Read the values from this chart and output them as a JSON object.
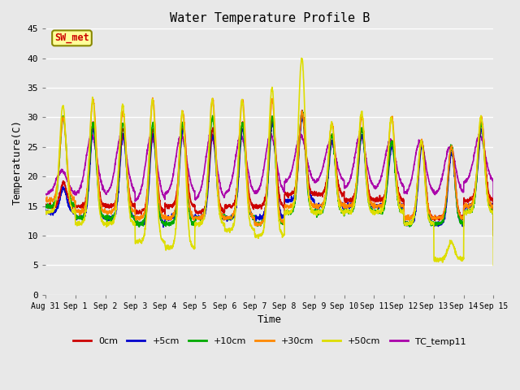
{
  "title": "Water Temperature Profile B",
  "xlabel": "Time",
  "ylabel": "Temperature(C)",
  "ylim": [
    0,
    45
  ],
  "yticks": [
    0,
    5,
    10,
    15,
    20,
    25,
    30,
    35,
    40,
    45
  ],
  "date_labels": [
    "Aug 31",
    "Sep 1",
    "Sep 2",
    "Sep 3",
    "Sep 4",
    "Sep 5",
    "Sep 6",
    "Sep 7",
    "Sep 8",
    "Sep 9",
    "Sep 10",
    "Sep 11",
    "Sep 12",
    "Sep 13",
    "Sep 14",
    "Sep 15"
  ],
  "series_colors": {
    "0cm": "#cc0000",
    "+5cm": "#0000cc",
    "+10cm": "#00aa00",
    "+30cm": "#ff8800",
    "+50cm": "#dddd00",
    "TC_temp11": "#aa00aa"
  },
  "annotation_text": "SW_met",
  "annotation_color": "#cc0000",
  "annotation_bg": "#ffff99",
  "annotation_border": "#888800",
  "bg_color": "#e8e8e8",
  "legend_colors": [
    "#cc0000",
    "#0000cc",
    "#00aa00",
    "#ff8800",
    "#dddd00",
    "#aa00aa"
  ],
  "legend_labels": [
    "0cm",
    "+5cm",
    "+10cm",
    "+30cm",
    "+50cm",
    "TC_temp11"
  ],
  "linewidth": 1.2
}
